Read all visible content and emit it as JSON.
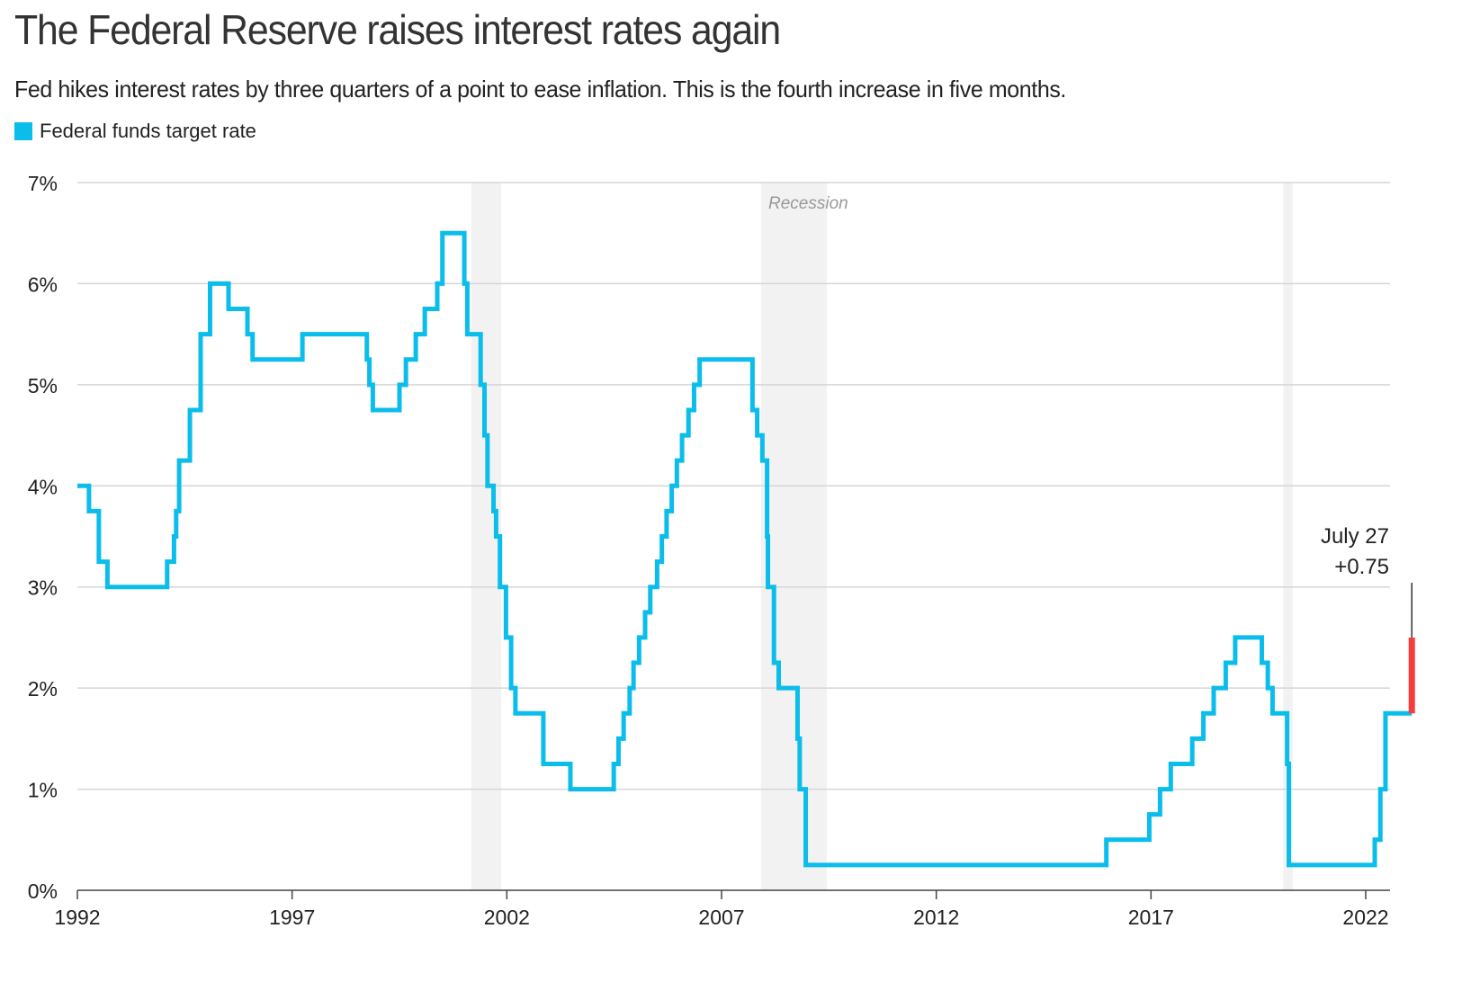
{
  "title": "The Federal Reserve raises interest rates again",
  "subtitle": "Fed hikes interest rates by three quarters of a point to ease inflation. This is the fourth increase in five months.",
  "colors": {
    "series": "#0bbdea",
    "highlight": "#f63d3d",
    "recession": "#f2f2f2",
    "grid": "#d6d6d6"
  },
  "chart_data": {
    "type": "line",
    "step": true,
    "title": "The Federal Reserve raises interest rates again",
    "xlabel": "",
    "ylabel": "",
    "xlim": [
      1992,
      2022.57
    ],
    "ylim": [
      0,
      7
    ],
    "grid": true,
    "legend": {
      "placement": "top-left",
      "entries": [
        "Federal funds target rate"
      ]
    },
    "x_ticks": [
      1992,
      1997,
      2002,
      2007,
      2012,
      2017,
      2022
    ],
    "y_ticks": [
      {
        "v": 0,
        "label": "0%"
      },
      {
        "v": 1,
        "label": "1%"
      },
      {
        "v": 2,
        "label": "2%"
      },
      {
        "v": 3,
        "label": "3%"
      },
      {
        "v": 4,
        "label": "4%"
      },
      {
        "v": 5,
        "label": "5%"
      },
      {
        "v": 6,
        "label": "6%"
      },
      {
        "v": 7,
        "label": "7%"
      }
    ],
    "recessions": [
      {
        "start": 2001.17,
        "end": 2001.87,
        "label": ""
      },
      {
        "start": 2007.92,
        "end": 2009.45,
        "label": "Recession"
      },
      {
        "start": 2020.08,
        "end": 2020.3,
        "label": ""
      }
    ],
    "series": [
      {
        "name": "Federal funds target rate",
        "points": [
          [
            1992.0,
            4.0
          ],
          [
            1992.27,
            3.75
          ],
          [
            1992.5,
            3.25
          ],
          [
            1992.7,
            3.0
          ],
          [
            1994.09,
            3.25
          ],
          [
            1994.25,
            3.5
          ],
          [
            1994.3,
            3.75
          ],
          [
            1994.37,
            4.25
          ],
          [
            1994.62,
            4.75
          ],
          [
            1994.87,
            5.5
          ],
          [
            1995.09,
            6.0
          ],
          [
            1995.52,
            5.75
          ],
          [
            1995.96,
            5.5
          ],
          [
            1996.08,
            5.25
          ],
          [
            1997.24,
            5.5
          ],
          [
            1998.74,
            5.25
          ],
          [
            1998.8,
            5.0
          ],
          [
            1998.88,
            4.75
          ],
          [
            1999.5,
            5.0
          ],
          [
            1999.65,
            5.25
          ],
          [
            1999.88,
            5.5
          ],
          [
            2000.09,
            5.75
          ],
          [
            2000.38,
            6.0
          ],
          [
            2000.5,
            6.5
          ],
          [
            2001.01,
            6.0
          ],
          [
            2001.08,
            5.5
          ],
          [
            2001.39,
            5.0
          ],
          [
            2001.48,
            4.5
          ],
          [
            2001.55,
            4.0
          ],
          [
            2001.69,
            3.75
          ],
          [
            2001.75,
            3.5
          ],
          [
            2001.84,
            3.0
          ],
          [
            2001.98,
            2.5
          ],
          [
            2002.1,
            2.0
          ],
          [
            2002.2,
            1.75
          ],
          [
            2002.85,
            1.25
          ],
          [
            2003.48,
            1.0
          ],
          [
            2004.49,
            1.25
          ],
          [
            2004.6,
            1.5
          ],
          [
            2004.72,
            1.75
          ],
          [
            2004.86,
            2.0
          ],
          [
            2004.95,
            2.25
          ],
          [
            2005.08,
            2.5
          ],
          [
            2005.22,
            2.75
          ],
          [
            2005.34,
            3.0
          ],
          [
            2005.5,
            3.25
          ],
          [
            2005.61,
            3.5
          ],
          [
            2005.72,
            3.75
          ],
          [
            2005.84,
            4.0
          ],
          [
            2005.96,
            4.25
          ],
          [
            2006.08,
            4.5
          ],
          [
            2006.23,
            4.75
          ],
          [
            2006.36,
            5.0
          ],
          [
            2006.49,
            5.25
          ],
          [
            2007.72,
            4.75
          ],
          [
            2007.83,
            4.5
          ],
          [
            2007.95,
            4.25
          ],
          [
            2008.06,
            3.5
          ],
          [
            2008.08,
            3.0
          ],
          [
            2008.22,
            2.25
          ],
          [
            2008.33,
            2.0
          ],
          [
            2008.77,
            1.5
          ],
          [
            2008.82,
            1.0
          ],
          [
            2008.96,
            0.25
          ],
          [
            2015.96,
            0.5
          ],
          [
            2016.96,
            0.75
          ],
          [
            2017.21,
            1.0
          ],
          [
            2017.46,
            1.25
          ],
          [
            2017.96,
            1.5
          ],
          [
            2018.22,
            1.75
          ],
          [
            2018.46,
            2.0
          ],
          [
            2018.74,
            2.25
          ],
          [
            2018.96,
            2.5
          ],
          [
            2019.58,
            2.25
          ],
          [
            2019.72,
            2.0
          ],
          [
            2019.83,
            1.75
          ],
          [
            2020.17,
            1.25
          ],
          [
            2020.21,
            0.25
          ],
          [
            2022.21,
            0.5
          ],
          [
            2022.34,
            1.0
          ],
          [
            2022.46,
            1.75
          ],
          [
            2022.57,
            1.75
          ]
        ]
      }
    ],
    "highlight": {
      "x": 2022.57,
      "from": 1.75,
      "to": 2.5,
      "change": 0.75
    },
    "annotations": {
      "recession_label": "Recession",
      "date": "July 27",
      "change_label": "+0.75"
    }
  }
}
